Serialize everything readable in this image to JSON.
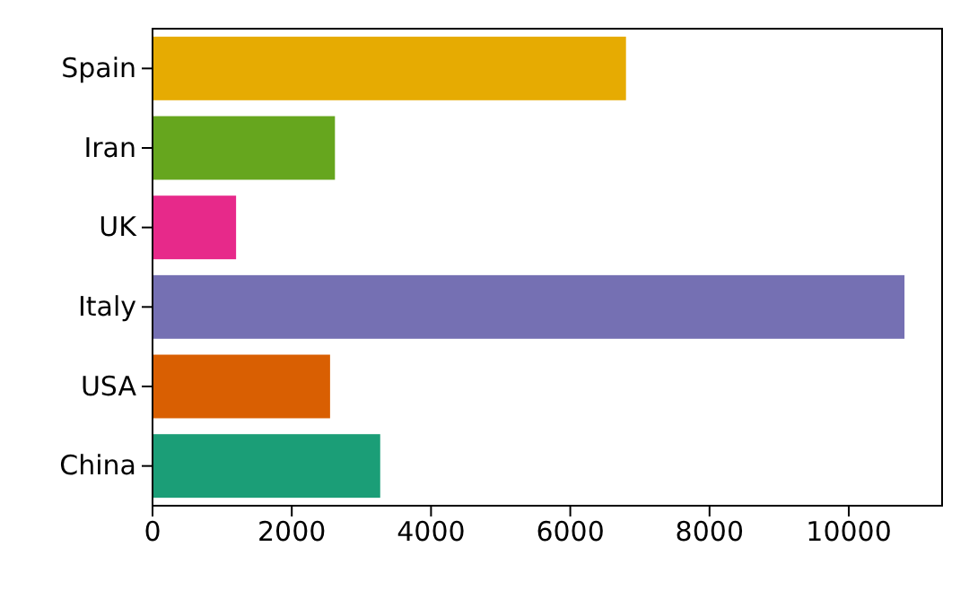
{
  "chart_data": {
    "type": "bar",
    "orientation": "horizontal",
    "categories": [
      "Spain",
      "Iran",
      "UK",
      "Italy",
      "USA",
      "China"
    ],
    "values": [
      6800,
      2620,
      1200,
      10800,
      2550,
      3270
    ],
    "colors": [
      "#e6ab02",
      "#66a61e",
      "#e7298a",
      "#7570b3",
      "#d95f02",
      "#1b9e77"
    ],
    "xlim": [
      0,
      11340
    ],
    "xticks": [
      0,
      2000,
      4000,
      6000,
      8000,
      10000
    ],
    "grid": false
  }
}
